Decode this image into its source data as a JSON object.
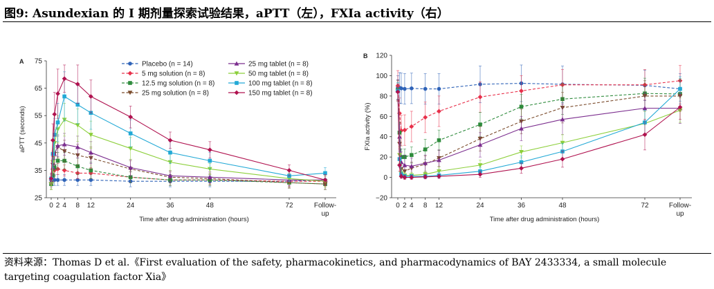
{
  "page": {
    "title": "图9:  Asundexian 的 I 期剂量探索试验结果，aPTT（左），FXIa activity（右）",
    "source": "资料来源：Thomas D et al.《First evaluation of the safety, pharmacokinetics, and pharmacodynamics of BAY 2433334, a small molecule targeting coagulation factor Xia》"
  },
  "legend": [
    {
      "label": "Placebo (n = 14)",
      "color": "#2f63b8",
      "dash": true,
      "marker": "circle"
    },
    {
      "label": "5 mg solution (n = 8)",
      "color": "#e8304a",
      "dash": true,
      "marker": "diamond"
    },
    {
      "label": "12.5 mg solution (n = 8)",
      "color": "#2e8b3c",
      "dash": true,
      "marker": "square"
    },
    {
      "label": "25 mg solution (n = 8)",
      "color": "#7a4a2a",
      "dash": true,
      "marker": "triangle-down"
    },
    {
      "label": "25 mg tablet (n = 8)",
      "color": "#7b2d8e",
      "dash": false,
      "marker": "triangle-up"
    },
    {
      "label": "50 mg tablet (n = 8)",
      "color": "#8ccf3a",
      "dash": false,
      "marker": "triangle-down"
    },
    {
      "label": "100 mg tablet (n = 8)",
      "color": "#22a9d6",
      "dash": false,
      "marker": "square"
    },
    {
      "label": "150 mg tablet (n = 8)",
      "color": "#b0124f",
      "dash": false,
      "marker": "diamond"
    }
  ],
  "chart_data": [
    {
      "type": "line",
      "panel": "A",
      "xlabel": "Time after drug administration (hours)",
      "ylabel": "aPTT (seconds)",
      "ylim": [
        25,
        75
      ],
      "yticks": [
        25,
        35,
        45,
        55,
        65,
        75
      ],
      "xticks": [
        {
          "v": 0,
          "label": "0"
        },
        {
          "v": 2,
          "label": "2"
        },
        {
          "v": 4,
          "label": "4"
        },
        {
          "v": 8,
          "label": "8"
        },
        {
          "v": 12,
          "label": "12"
        },
        {
          "v": 24,
          "label": "24"
        },
        {
          "v": 36,
          "label": "36"
        },
        {
          "v": 48,
          "label": "48"
        },
        {
          "v": 72,
          "label": "72"
        },
        {
          "v": 80,
          "label": "Follow-\nup"
        }
      ],
      "x": [
        0,
        0.5,
        1,
        2,
        4,
        8,
        12,
        24,
        36,
        48,
        72,
        80
      ],
      "series": [
        {
          "name": "Placebo (n = 14)",
          "values": [
            31.5,
            31.5,
            31.5,
            31.5,
            31.5,
            31.5,
            31.5,
            31,
            31,
            31,
            31,
            31.5
          ],
          "err": [
            2,
            2,
            2,
            2,
            2,
            2,
            2,
            2,
            2,
            2,
            2,
            2
          ]
        },
        {
          "name": "5 mg solution (n = 8)",
          "values": [
            31.5,
            33,
            35,
            35.5,
            35,
            34,
            34,
            32.5,
            31.5,
            31.5,
            31,
            31
          ],
          "err": [
            2,
            2,
            2,
            2,
            2,
            2,
            2,
            2,
            2,
            2,
            2,
            2
          ]
        },
        {
          "name": "12.5 mg solution (n = 8)",
          "values": [
            30,
            33,
            36,
            38.5,
            38.5,
            36.5,
            35,
            32.5,
            31.5,
            31.5,
            30.5,
            30
          ],
          "err": [
            2,
            2.5,
            3,
            3,
            3,
            3,
            3,
            2,
            2,
            2,
            2,
            2
          ]
        },
        {
          "name": "25 mg solution (n = 8)",
          "values": [
            30,
            37,
            41,
            43.5,
            42,
            40.5,
            39.5,
            35.5,
            32.5,
            32,
            30.5,
            30
          ],
          "err": [
            2,
            3,
            4,
            4,
            4,
            4,
            4,
            3,
            2,
            2,
            2,
            2
          ]
        },
        {
          "name": "25 mg tablet (n = 8)",
          "values": [
            31,
            36,
            41,
            44,
            44.5,
            43.5,
            41.5,
            36,
            33,
            32.5,
            31.5,
            31.5
          ],
          "err": [
            2,
            3,
            4,
            4,
            4,
            4,
            4,
            3,
            2,
            2,
            2,
            2
          ]
        },
        {
          "name": "50 mg tablet (n = 8)",
          "values": [
            30,
            38,
            45,
            50,
            53.5,
            51.5,
            48,
            43,
            38,
            35.5,
            32,
            31
          ],
          "err": [
            2,
            4,
            5,
            5,
            6,
            6,
            5,
            4,
            3,
            2,
            2,
            2
          ]
        },
        {
          "name": "100 mg tablet (n = 8)",
          "values": [
            32,
            41,
            48,
            52.5,
            62,
            59,
            56,
            48.5,
            41.5,
            38.5,
            33,
            34
          ],
          "err": [
            2,
            5,
            6,
            7,
            9,
            7,
            6,
            5,
            4,
            3,
            2,
            2
          ]
        },
        {
          "name": "150 mg tablet (n = 8)",
          "values": [
            32,
            46,
            55.5,
            63,
            68.5,
            66.5,
            62,
            54.5,
            46,
            42.5,
            35,
            31.5
          ],
          "err": [
            2,
            6,
            8,
            9,
            5,
            7,
            6,
            4,
            3,
            3,
            2,
            2
          ]
        }
      ]
    },
    {
      "type": "line",
      "panel": "B",
      "xlabel": "Time after drug administration (hours)",
      "ylabel": "FXIa activity (%)",
      "ylim": [
        -20,
        120
      ],
      "yticks": [
        -20,
        0,
        20,
        40,
        60,
        80,
        100,
        120
      ],
      "xticks": [
        {
          "v": 0,
          "label": "0"
        },
        {
          "v": 2,
          "label": "2"
        },
        {
          "v": 4,
          "label": "4"
        },
        {
          "v": 8,
          "label": "8"
        },
        {
          "v": 12,
          "label": "12"
        },
        {
          "v": 24,
          "label": "24"
        },
        {
          "v": 36,
          "label": "36"
        },
        {
          "v": 48,
          "label": "48"
        },
        {
          "v": 72,
          "label": "72"
        },
        {
          "v": 80,
          "label": "Follow-\nup"
        }
      ],
      "x": [
        0,
        0.5,
        1,
        2,
        4,
        8,
        12,
        24,
        36,
        48,
        72,
        80
      ],
      "series": [
        {
          "name": "Placebo (n = 14)",
          "values": [
            88,
            88,
            87.5,
            87,
            87.5,
            87,
            87,
            91.5,
            92.5,
            91.5,
            90.5,
            87
          ],
          "err": [
            12,
            15,
            15,
            15,
            15,
            15,
            15,
            18,
            18,
            18,
            15,
            15
          ]
        },
        {
          "name": "5 mg solution (n = 8)",
          "values": [
            90,
            63,
            46,
            46.5,
            50,
            59,
            65,
            79,
            85,
            91,
            91,
            95
          ],
          "err": [
            15,
            15,
            15,
            15,
            15,
            15,
            15,
            15,
            15,
            15,
            15,
            15
          ]
        },
        {
          "name": "12.5 mg solution (n = 8)",
          "values": [
            86,
            44,
            20,
            20,
            22,
            27.5,
            36.5,
            52,
            69.5,
            77,
            82.5,
            82
          ],
          "err": [
            10,
            10,
            8,
            8,
            8,
            10,
            10,
            12,
            12,
            15,
            15,
            15
          ]
        },
        {
          "name": "25 mg solution (n = 8)",
          "values": [
            85,
            33,
            8,
            6,
            9,
            13,
            19,
            38,
            55,
            68.5,
            80,
            80
          ],
          "err": [
            10,
            10,
            6,
            6,
            6,
            8,
            8,
            12,
            12,
            15,
            15,
            15
          ]
        },
        {
          "name": "25 mg tablet (n = 8)",
          "values": [
            86,
            40,
            15,
            12,
            11,
            14,
            17,
            32,
            48,
            57,
            68,
            68
          ],
          "err": [
            10,
            12,
            10,
            10,
            8,
            8,
            10,
            12,
            12,
            15,
            15,
            15
          ]
        },
        {
          "name": "50 mg tablet (n = 8)",
          "values": [
            85,
            22,
            4,
            2,
            2,
            3,
            6,
            12,
            25,
            34,
            53,
            66
          ],
          "err": [
            8,
            8,
            4,
            3,
            3,
            3,
            4,
            5,
            6,
            8,
            12,
            12
          ]
        },
        {
          "name": "100 mg tablet (n = 8)",
          "values": [
            85,
            18,
            3,
            1,
            1,
            1,
            2,
            6,
            15,
            25.5,
            54,
            87
          ],
          "err": [
            8,
            8,
            3,
            2,
            2,
            2,
            3,
            4,
            6,
            8,
            12,
            12
          ]
        },
        {
          "name": "150 mg tablet (n = 8)",
          "values": [
            84,
            12,
            1,
            0,
            0,
            0.5,
            1,
            3,
            9,
            18,
            42,
            69
          ],
          "err": [
            8,
            6,
            2,
            2,
            2,
            2,
            2,
            3,
            5,
            8,
            15,
            12
          ]
        }
      ]
    }
  ]
}
